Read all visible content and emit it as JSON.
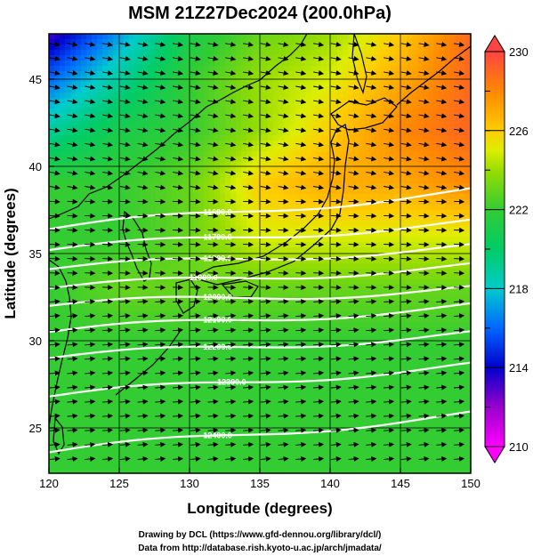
{
  "figure": {
    "title": "MSM 21Z27Dec2024 (200.0hPa)",
    "xlabel": "Longitude (degrees)",
    "ylabel": "Latitude  (degrees)",
    "credit_line1": "Drawing by DCL (https://www.gfd-dennou.org/library/dcl/)",
    "credit_line2": "Data from http://database.rish.kyoto-u.ac.jp/arch/jmadata/"
  },
  "chart_data": {
    "type": "heatmap",
    "title": "MSM 21Z27Dec2024 (200.0hPa)",
    "xlabel": "Longitude (degrees)",
    "ylabel": "Latitude  (degrees)",
    "xlim": [
      120,
      150
    ],
    "ylim": [
      22.4,
      47.6
    ],
    "x_ticks": [
      120,
      125,
      130,
      135,
      140,
      145,
      150
    ],
    "y_ticks": [
      25,
      30,
      35,
      40,
      45
    ],
    "grid": true,
    "colorbar": {
      "min": 210,
      "max": 230,
      "tick_values": [
        210,
        214,
        218,
        222,
        226,
        230
      ],
      "stops": [
        {
          "value": 210,
          "color": "#ff00ff"
        },
        {
          "value": 212,
          "color": "#9900cc"
        },
        {
          "value": 214,
          "color": "#0000cc"
        },
        {
          "value": 216,
          "color": "#0066ff"
        },
        {
          "value": 218,
          "color": "#00cccc"
        },
        {
          "value": 220,
          "color": "#00cc66"
        },
        {
          "value": 222,
          "color": "#33cc33"
        },
        {
          "value": 224,
          "color": "#99dd00"
        },
        {
          "value": 225,
          "color": "#ddee00"
        },
        {
          "value": 226,
          "color": "#ffcc00"
        },
        {
          "value": 228,
          "color": "#ff8800"
        },
        {
          "value": 230,
          "color": "#ff4444"
        }
      ]
    },
    "temperature_field": {
      "lon": [
        120,
        125,
        130,
        135,
        140,
        145,
        150
      ],
      "lat": [
        47.6,
        45,
        42,
        39,
        36,
        33,
        30,
        27,
        24,
        22.4
      ],
      "values": [
        [
          213,
          217,
          221,
          223,
          224,
          226,
          229
        ],
        [
          216,
          219,
          222,
          224,
          225,
          227,
          229
        ],
        [
          219,
          221,
          222,
          224,
          226,
          228,
          229
        ],
        [
          222,
          222,
          223,
          226,
          227,
          227,
          228
        ],
        [
          222,
          222,
          223,
          225,
          225,
          225,
          225
        ],
        [
          222,
          223,
          223,
          223,
          223,
          223,
          223
        ],
        [
          222,
          222,
          222,
          222,
          222,
          222,
          222
        ],
        [
          222,
          222,
          222,
          222,
          222,
          222,
          222
        ],
        [
          222,
          222,
          222,
          222,
          222,
          222,
          222
        ],
        [
          222,
          222,
          222,
          222,
          222,
          222,
          222
        ]
      ]
    },
    "contours": [
      {
        "label": "11600.0",
        "lat_west": 36.4,
        "lat_east": 38.6,
        "label_lon": 132
      },
      {
        "label": "11700.0",
        "lat_west": 35.2,
        "lat_east": 36.8,
        "label_lon": 132
      },
      {
        "label": "11800.0",
        "lat_west": 34.1,
        "lat_east": 35.4,
        "label_lon": 132
      },
      {
        "label": "11900.0",
        "lat_west": 33.0,
        "lat_east": 34.3,
        "label_lon": 131
      },
      {
        "label": "12000.0",
        "lat_west": 32.0,
        "lat_east": 33.0,
        "label_lon": 132
      },
      {
        "label": "12100.0",
        "lat_west": 30.5,
        "lat_east": 32.0,
        "label_lon": 132
      },
      {
        "label": "12200.0",
        "lat_west": 29.0,
        "lat_east": 30.4,
        "label_lon": 132
      },
      {
        "label": "12300.0",
        "lat_west": 26.8,
        "lat_east": 28.6,
        "label_lon": 133
      },
      {
        "label": "12400.0",
        "lat_west": 23.6,
        "lat_east": 25.8,
        "label_lon": 132
      }
    ],
    "wind_direction": "westerly (eastward flow with slight southward component in north, northeastward in south)"
  }
}
